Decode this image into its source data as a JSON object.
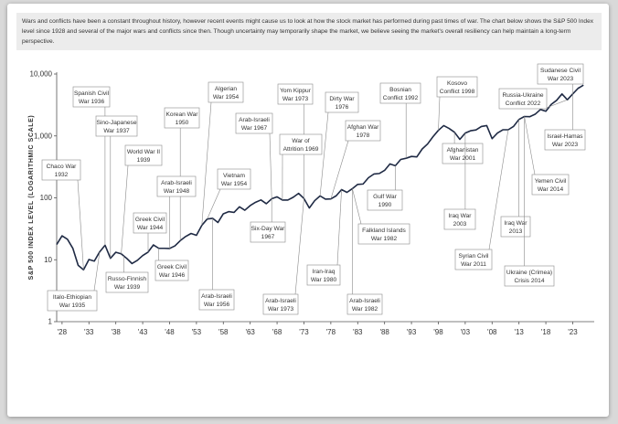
{
  "chart_data": {
    "type": "line",
    "description": "Wars and conflicts have been a constant throughout history, however recent events might cause us to look at how the stock market has performed during past times of war. The chart below shows the S&P 500 Index level since 1928 and several of the major wars and conflicts since then. Though uncertainty may temporarily shape the market, we believe seeing the market's overall resiliency can help maintain a long-term perspective.",
    "ylabel": "S&P 500 INDEX LEVEL (LOGARITHMIC SCALE)",
    "log_scale": true,
    "color": "#1f2a44",
    "x": [
      1927,
      1928,
      1929,
      1930,
      1931,
      1932,
      1933,
      1934,
      1935,
      1936,
      1937,
      1938,
      1939,
      1940,
      1941,
      1942,
      1943,
      1944,
      1945,
      1946,
      1947,
      1948,
      1949,
      1950,
      1951,
      1952,
      1953,
      1954,
      1955,
      1956,
      1957,
      1958,
      1959,
      1960,
      1961,
      1962,
      1963,
      1964,
      1965,
      1966,
      1967,
      1968,
      1969,
      1970,
      1971,
      1972,
      1973,
      1974,
      1975,
      1976,
      1977,
      1978,
      1979,
      1980,
      1981,
      1982,
      1983,
      1984,
      1985,
      1986,
      1987,
      1988,
      1989,
      1990,
      1991,
      1992,
      1993,
      1994,
      1995,
      1996,
      1997,
      1998,
      1999,
      2000,
      2001,
      2002,
      2003,
      2004,
      2005,
      2006,
      2007,
      2008,
      2009,
      2010,
      2011,
      2012,
      2013,
      2014,
      2015,
      2016,
      2017,
      2018,
      2019,
      2020,
      2021,
      2022,
      2023,
      2024,
      2025
    ],
    "values": [
      17.66,
      24.35,
      21.45,
      15.34,
      8.12,
      6.89,
      10.1,
      9.5,
      13.43,
      17.18,
      10.55,
      13.21,
      12.49,
      10.58,
      8.69,
      9.77,
      11.67,
      13.28,
      17.36,
      15.3,
      15.3,
      15.2,
      16.76,
      20.41,
      23.77,
      26.57,
      24.81,
      35.98,
      45.48,
      46.67,
      39.99,
      55.21,
      59.89,
      58.11,
      71.55,
      63.1,
      75.02,
      84.75,
      92.43,
      80.33,
      96.47,
      103.86,
      92.06,
      92.15,
      102.09,
      118.05,
      97.55,
      68.56,
      90.19,
      107.46,
      95.1,
      96.11,
      107.94,
      135.76,
      122.55,
      140.64,
      164.93,
      167.24,
      211.28,
      242.17,
      247.08,
      277.72,
      353.4,
      330.22,
      417.09,
      435.71,
      466.45,
      459.27,
      615.93,
      740.74,
      970.43,
      1229.23,
      1469.25,
      1320.28,
      1148.08,
      879.82,
      1111.92,
      1211.92,
      1248.29,
      1418.3,
      1468.36,
      903.25,
      1115.1,
      1257.64,
      1257.6,
      1426.19,
      1848.36,
      2058.9,
      2043.94,
      2238.83,
      2673.61,
      2506.85,
      3230.78,
      3756.07,
      4766.18,
      3839.5,
      4769.83,
      5881.63,
      6600
    ],
    "xlim": [
      1927,
      2027
    ],
    "xticks": [
      {
        "value": 1928,
        "label": "'28"
      },
      {
        "value": 1933,
        "label": "'33"
      },
      {
        "value": 1938,
        "label": "'38"
      },
      {
        "value": 1943,
        "label": "'43"
      },
      {
        "value": 1948,
        "label": "'48"
      },
      {
        "value": 1953,
        "label": "'53"
      },
      {
        "value": 1958,
        "label": "'58"
      },
      {
        "value": 1963,
        "label": "'63"
      },
      {
        "value": 1968,
        "label": "'68"
      },
      {
        "value": 1973,
        "label": "'73"
      },
      {
        "value": 1978,
        "label": "'78"
      },
      {
        "value": 1983,
        "label": "'83"
      },
      {
        "value": 1988,
        "label": "'88"
      },
      {
        "value": 1993,
        "label": "'93"
      },
      {
        "value": 1998,
        "label": "'98"
      },
      {
        "value": 2003,
        "label": "'03"
      },
      {
        "value": 2008,
        "label": "'08"
      },
      {
        "value": 2013,
        "label": "'13"
      },
      {
        "value": 2018,
        "label": "'18"
      },
      {
        "value": 2023,
        "label": "'23"
      }
    ],
    "ylim": [
      1,
      10000
    ],
    "yticks": [
      1,
      10,
      100,
      {
        "value": 1000,
        "label": "1,000"
      },
      {
        "value": 10000,
        "label": "10,000"
      }
    ],
    "annotations": [
      [
        "Chaco War",
        "1932"
      ],
      [
        "Spanish Civil",
        "War 1936"
      ],
      [
        "Sino-Japanese",
        "War 1937"
      ],
      [
        "World War II",
        "1939"
      ],
      [
        "Korean War",
        "1950"
      ],
      [
        "Algerian",
        "War 1954"
      ],
      [
        "Arab-Israeli",
        "War 1948"
      ],
      [
        "Greek Civil",
        "War 1944"
      ],
      [
        "Vietnam",
        "War 1954"
      ],
      [
        "Italo-Ethiopian",
        "War 1935"
      ],
      [
        "Russo-Finnish",
        "War 1939"
      ],
      [
        "Greek Civil",
        "War 1946"
      ],
      [
        "Arab-Israeli",
        "War 1956"
      ],
      [
        "Arab-Israeli",
        "War 1967"
      ],
      [
        "Six-Day War",
        "1967"
      ],
      [
        "Yom Kippur",
        "War 1973"
      ],
      [
        "War of",
        "Attrition 1969"
      ],
      [
        "Arab-Israeli",
        "War 1973"
      ],
      [
        "Dirty War",
        "1976"
      ],
      [
        "Afghan War",
        "1978"
      ],
      [
        "Iran-Iraq",
        "War 1980"
      ],
      [
        "Arab-Israeli",
        "War 1982"
      ],
      [
        "Bosnian",
        "Conflict 1992"
      ],
      [
        "Gulf War",
        "1990"
      ],
      [
        "Falkland Islands",
        "War 1982"
      ],
      [
        "Kosovo",
        "Conflict 1998"
      ],
      [
        "Afghanistan",
        "War 2001"
      ],
      [
        "Iraq War",
        "2003"
      ],
      [
        "Syrian Civil",
        "War 2011"
      ],
      [
        "Russia-Ukraine",
        "Conflict 2022"
      ],
      [
        "Sudanese Civil",
        "War 2023"
      ],
      [
        "Israel-Hamas",
        "War 2023"
      ],
      [
        "Yemen Civil",
        "War 2014"
      ],
      [
        "Iraq War",
        "2013"
      ],
      [
        "Ukraine (Crimea)",
        "Crisis 2014"
      ]
    ]
  }
}
